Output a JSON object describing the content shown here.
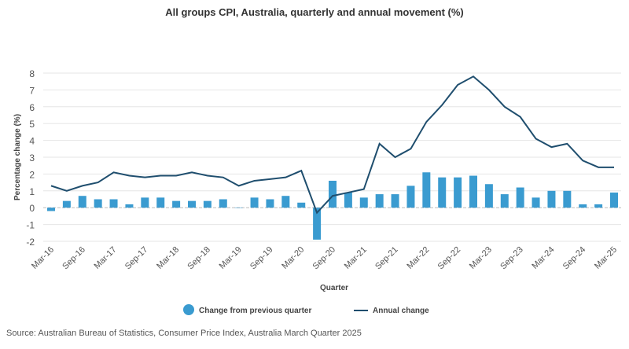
{
  "chart_data": {
    "type": "bar+line",
    "title": "All groups CPI, Australia, quarterly and annual movement (%)",
    "xlabel": "Quarter",
    "ylabel": "Percentage change (%)",
    "ylim": [
      -2,
      8
    ],
    "yticks": [
      -2,
      -1,
      0,
      1,
      2,
      3,
      4,
      5,
      6,
      7,
      8
    ],
    "grid": true,
    "legend_position": "bottom",
    "categories": [
      "Mar-16",
      "Jun-16",
      "Sep-16",
      "Dec-16",
      "Mar-17",
      "Jun-17",
      "Sep-17",
      "Dec-17",
      "Mar-18",
      "Jun-18",
      "Sep-18",
      "Dec-18",
      "Mar-19",
      "Jun-19",
      "Sep-19",
      "Dec-19",
      "Mar-20",
      "Jun-20",
      "Sep-20",
      "Dec-20",
      "Mar-21",
      "Jun-21",
      "Sep-21",
      "Dec-21",
      "Mar-22",
      "Jun-22",
      "Sep-22",
      "Dec-22",
      "Mar-23",
      "Jun-23",
      "Sep-23",
      "Dec-23",
      "Mar-24",
      "Jun-24",
      "Sep-24",
      "Dec-24",
      "Mar-25"
    ],
    "tick_labels": [
      "Mar-16",
      "Sep-16",
      "Mar-17",
      "Sep-17",
      "Mar-18",
      "Sep-18",
      "Mar-19",
      "Sep-19",
      "Mar-20",
      "Sep-20",
      "Mar-21",
      "Sep-21",
      "Mar-22",
      "Sep-22",
      "Mar-23",
      "Sep-23",
      "Mar-24",
      "Sep-24",
      "Mar-25"
    ],
    "series": [
      {
        "name": "Change from previous quarter",
        "type": "bar",
        "color": "#3a9bd0",
        "values": [
          -0.2,
          0.4,
          0.7,
          0.5,
          0.5,
          0.2,
          0.6,
          0.6,
          0.4,
          0.4,
          0.4,
          0.5,
          0.0,
          0.6,
          0.5,
          0.7,
          0.3,
          -1.9,
          1.6,
          0.9,
          0.6,
          0.8,
          0.8,
          1.3,
          2.1,
          1.8,
          1.8,
          1.9,
          1.4,
          0.8,
          1.2,
          0.6,
          1.0,
          1.0,
          0.2,
          0.2,
          0.9
        ]
      },
      {
        "name": "Annual change",
        "type": "line",
        "color": "#1f4e6e",
        "values": [
          1.3,
          1.0,
          1.3,
          1.5,
          2.1,
          1.9,
          1.8,
          1.9,
          1.9,
          2.1,
          1.9,
          1.8,
          1.3,
          1.6,
          1.7,
          1.8,
          2.2,
          -0.3,
          0.7,
          0.9,
          1.1,
          3.8,
          3.0,
          3.5,
          5.1,
          6.1,
          7.3,
          7.8,
          7.0,
          6.0,
          5.4,
          4.1,
          3.6,
          3.8,
          2.8,
          2.4,
          2.4
        ]
      }
    ]
  },
  "source": "Source: Australian Bureau of Statistics, Consumer Price Index, Australia March Quarter 2025"
}
